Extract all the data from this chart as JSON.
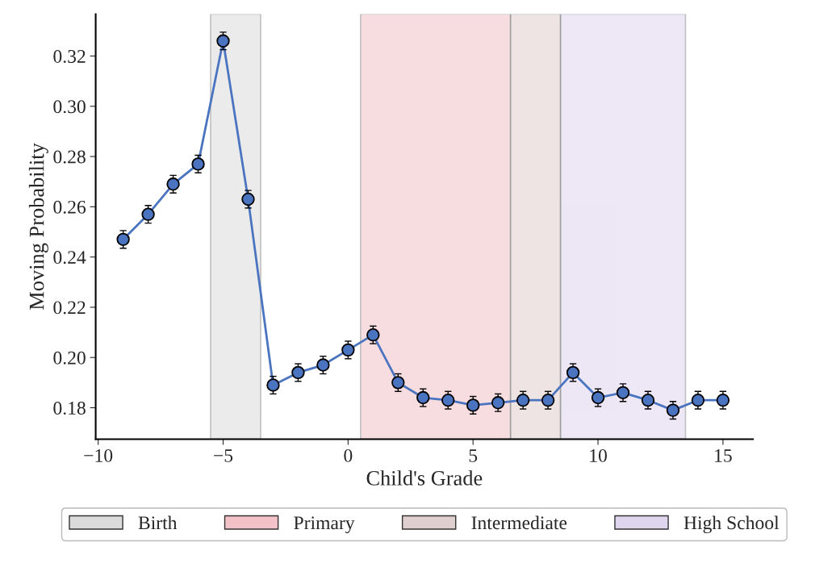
{
  "chart_data": {
    "type": "line",
    "xlabel": "Child's Grade",
    "ylabel": "Moving Probability",
    "x": [
      -9,
      -8,
      -7,
      -6,
      -5,
      -4,
      -3,
      -2,
      -1,
      0,
      1,
      2,
      3,
      4,
      5,
      6,
      7,
      8,
      9,
      10,
      11,
      12,
      13,
      14,
      15
    ],
    "series": [
      {
        "color": "#4a74c0",
        "values": [
          0.247,
          0.257,
          0.269,
          0.277,
          0.326,
          0.263,
          0.189,
          0.194,
          0.197,
          0.203,
          0.209,
          0.19,
          0.184,
          0.183,
          0.181,
          0.182,
          0.183,
          0.183,
          0.194,
          0.184,
          0.186,
          0.183,
          0.179,
          0.183,
          0.183
        ],
        "errors": [
          0.0035,
          0.0035,
          0.0035,
          0.0035,
          0.0035,
          0.0035,
          0.0035,
          0.0035,
          0.0035,
          0.0035,
          0.0035,
          0.0035,
          0.0035,
          0.0035,
          0.0035,
          0.0035,
          0.0035,
          0.0035,
          0.0035,
          0.0035,
          0.0035,
          0.0035,
          0.0035,
          0.0035,
          0.0035
        ]
      }
    ],
    "marker": "circle",
    "line_style": "solid",
    "grid": false,
    "legend": "bottom",
    "xlim": [
      -10.1,
      16.2
    ],
    "ylim": [
      0.1675,
      0.3367
    ],
    "xticks": [
      {
        "value": -10,
        "label": "−10"
      },
      {
        "value": -5,
        "label": "−5"
      },
      0,
      5,
      10,
      15
    ],
    "yticks": [
      {
        "value": 0.18,
        "label": "0.18"
      },
      {
        "value": 0.2,
        "label": "0.20"
      },
      {
        "value": 0.22,
        "label": "0.22"
      },
      {
        "value": 0.24,
        "label": "0.24"
      },
      {
        "value": 0.26,
        "label": "0.26"
      },
      {
        "value": 0.28,
        "label": "0.28"
      },
      {
        "value": 0.3,
        "label": "0.30"
      },
      {
        "value": 0.32,
        "label": "0.32"
      }
    ],
    "bands": [
      {
        "axis": "x",
        "from": -5.5,
        "to": -3.5,
        "label": "Birth",
        "color": "#d3d3d3"
      },
      {
        "axis": "x",
        "from": 0.5,
        "to": 6.5,
        "label": "Primary",
        "color": "#f0b4bb"
      },
      {
        "axis": "x",
        "from": 6.5,
        "to": 8.5,
        "label": "Intermediate",
        "color": "#d8c4c2"
      },
      {
        "axis": "x",
        "from": 8.5,
        "to": 13.5,
        "label": "High School",
        "color": "#d8cbeb"
      }
    ]
  }
}
